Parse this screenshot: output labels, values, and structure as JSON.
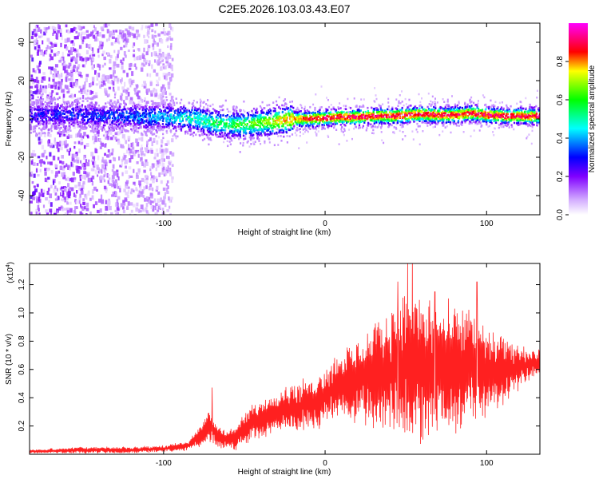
{
  "figure": {
    "title": "C2E5.2026.103.03.43.E07"
  },
  "chart_data": [
    {
      "type": "heatmap",
      "name": "spectrogram",
      "xlabel": "Height of straight line (km)",
      "ylabel": "Frequency (Hz)",
      "xlim": [
        -183,
        133
      ],
      "ylim": [
        -50,
        50
      ],
      "xticks": [
        -100,
        0,
        100
      ],
      "xtick_labels": [
        "-100",
        "0",
        "100"
      ],
      "yticks": [
        -40,
        -20,
        0,
        20,
        40
      ],
      "ytick_labels": [
        "-40",
        "-20",
        "0",
        "20",
        "40"
      ],
      "colorbar": {
        "label": "Normalized spectral amplitude",
        "range": [
          0,
          1
        ],
        "ticks": [
          0.0,
          0.2,
          0.4,
          0.6,
          0.8
        ],
        "tick_labels": [
          "0.0",
          "0.2",
          "0.4",
          "0.6",
          "0.8"
        ],
        "colormap": [
          "#ff00ff",
          "#ff0000",
          "#ffff00",
          "#00ff00",
          "#00ffff",
          "#0000ff",
          "#8000ff",
          "#ffffff"
        ]
      },
      "ridge": {
        "x": [
          -183,
          -160,
          -140,
          -120,
          -100,
          -90,
          -80,
          -70,
          -60,
          -50,
          -40,
          -30,
          -20,
          -10,
          0,
          10,
          20,
          30,
          40,
          50,
          60,
          70,
          80,
          90,
          100,
          110,
          120,
          133
        ],
        "freq": [
          2,
          2,
          1.5,
          1,
          1,
          0.5,
          0,
          -2,
          -3,
          -3,
          -2,
          -1,
          0,
          0,
          0.5,
          1,
          1,
          1.5,
          1.5,
          2,
          2.5,
          2,
          2,
          3,
          2,
          1.5,
          1.5,
          1.5
        ],
        "peak_amplitude": [
          0.25,
          0.3,
          0.3,
          0.35,
          0.4,
          0.45,
          0.5,
          0.55,
          0.55,
          0.6,
          0.65,
          0.75,
          0.8,
          0.85,
          0.9,
          0.9,
          0.9,
          0.9,
          0.9,
          0.9,
          0.9,
          0.9,
          0.9,
          0.9,
          0.9,
          0.9,
          0.9,
          0.9
        ]
      },
      "broadband_noise_extent_km": [
        -183,
        -95
      ]
    },
    {
      "type": "line",
      "name": "snr",
      "xlabel": "Height of straight line (km)",
      "ylabel": "SNR (10 * v/v)",
      "y_multiplier_label": "(x10",
      "y_multiplier_exponent": "4",
      "xlim": [
        -183,
        133
      ],
      "ylim": [
        0,
        1.35
      ],
      "xticks": [
        -100,
        0,
        100
      ],
      "xtick_labels": [
        "-100",
        "0",
        "100"
      ],
      "yticks": [
        0.2,
        0.4,
        0.6,
        0.8,
        1.0,
        1.2
      ],
      "ytick_labels": [
        "0.2",
        "0.4",
        "0.6",
        "0.8",
        "1.0",
        "1.2"
      ],
      "color": "#ff2020",
      "envelope": {
        "x": [
          -183,
          -150,
          -120,
          -100,
          -85,
          -78,
          -74,
          -71,
          -68,
          -60,
          -55,
          -45,
          -35,
          -25,
          -15,
          -5,
          5,
          15,
          25,
          35,
          45,
          50,
          55,
          65,
          75,
          85,
          95,
          105,
          115,
          125,
          133
        ],
        "mean": [
          0.02,
          0.03,
          0.03,
          0.04,
          0.06,
          0.12,
          0.18,
          0.2,
          0.14,
          0.1,
          0.12,
          0.22,
          0.28,
          0.32,
          0.34,
          0.38,
          0.46,
          0.5,
          0.55,
          0.58,
          0.62,
          0.62,
          0.6,
          0.6,
          0.6,
          0.62,
          0.6,
          0.58,
          0.6,
          0.64,
          0.65
        ],
        "spread": [
          0.01,
          0.02,
          0.02,
          0.02,
          0.03,
          0.06,
          0.1,
          0.12,
          0.08,
          0.06,
          0.08,
          0.12,
          0.14,
          0.15,
          0.16,
          0.18,
          0.2,
          0.25,
          0.3,
          0.35,
          0.45,
          0.55,
          0.5,
          0.45,
          0.42,
          0.4,
          0.35,
          0.25,
          0.18,
          0.12,
          0.08
        ]
      },
      "peaks": [
        {
          "x": -70,
          "y": 0.47
        },
        {
          "x": 45,
          "y": 1.22
        },
        {
          "x": 51,
          "y": 1.35
        },
        {
          "x": 54,
          "y": 1.35
        },
        {
          "x": 68,
          "y": 1.15
        },
        {
          "x": 94,
          "y": 1.22
        }
      ]
    }
  ]
}
